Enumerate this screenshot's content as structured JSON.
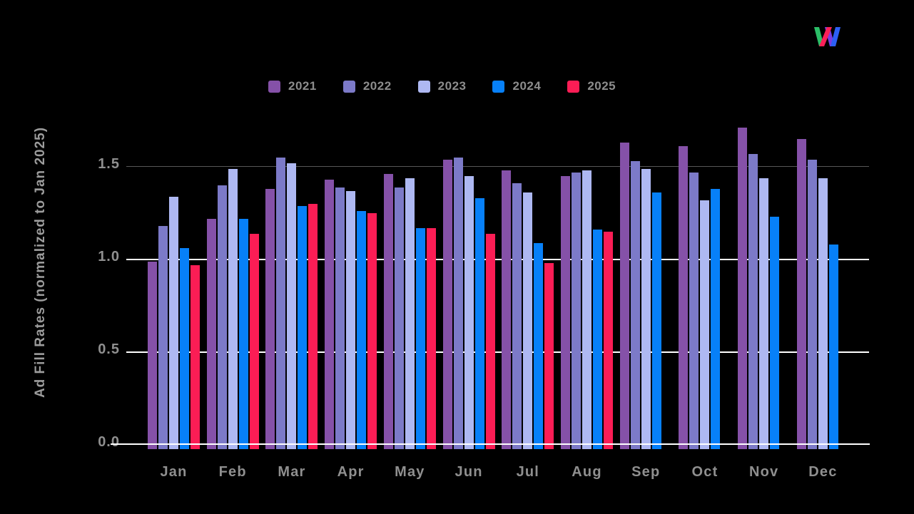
{
  "brand": {
    "logo_name": "w-logo",
    "logo_colors": {
      "green": "#2BBE67",
      "pink": "#FB2058",
      "purple": "#7B3BE0",
      "blue": "#2C5FF5"
    }
  },
  "y_axis": {
    "title": "Ad Fill Rates (normalized to Jan 2025)"
  },
  "chart_data": {
    "type": "bar",
    "title": "",
    "xlabel": "",
    "ylabel": "Ad Fill Rates (normalized to Jan 2025)",
    "categories": [
      "Jan",
      "Feb",
      "Mar",
      "Apr",
      "May",
      "Jun",
      "Jul",
      "Aug",
      "Sep",
      "Oct",
      "Nov",
      "Dec"
    ],
    "series": [
      {
        "name": "2021",
        "color": "#8551A8",
        "values": [
          0.99,
          1.22,
          1.38,
          1.43,
          1.46,
          1.54,
          1.48,
          1.45,
          1.63,
          1.61,
          1.71,
          1.65
        ]
      },
      {
        "name": "2022",
        "color": "#7C7AC8",
        "values": [
          1.18,
          1.4,
          1.55,
          1.39,
          1.39,
          1.55,
          1.41,
          1.47,
          1.53,
          1.47,
          1.57,
          1.54
        ]
      },
      {
        "name": "2023",
        "color": "#AEB8F2",
        "values": [
          1.34,
          1.49,
          1.52,
          1.37,
          1.44,
          1.45,
          1.36,
          1.48,
          1.49,
          1.32,
          1.44,
          1.44
        ]
      },
      {
        "name": "2024",
        "color": "#0780F8",
        "values": [
          1.06,
          1.22,
          1.29,
          1.26,
          1.17,
          1.33,
          1.09,
          1.16,
          1.36,
          1.38,
          1.23,
          1.08
        ]
      },
      {
        "name": "2025",
        "color": "#FB1D55",
        "values": [
          0.97,
          1.14,
          1.3,
          1.25,
          1.17,
          1.14,
          0.98,
          1.15,
          null,
          null,
          null,
          null
        ]
      }
    ],
    "yticks": [
      {
        "label": "1.5",
        "value": 1.5
      },
      {
        "label": "1.0",
        "value": 1.0
      },
      {
        "label": "0.5",
        "value": 0.5
      },
      {
        "label": "0.0",
        "value": 0.0
      }
    ],
    "ylim": [
      0,
      1.75
    ],
    "grid": "horizontal",
    "gridline_style": {
      "1.5": "gray",
      "1.0": "white",
      "0.5": "white"
    },
    "legend_position": "top",
    "background": "#000000",
    "text_color": "#8f8f8f"
  }
}
